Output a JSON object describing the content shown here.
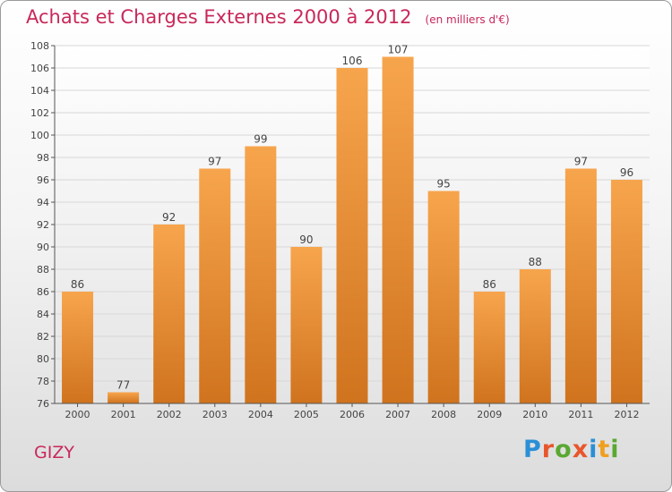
{
  "title": "Achats et Charges Externes 2000 à 2012",
  "unit": "(en milliers d'€)",
  "city": "GIZY",
  "logo": {
    "letters": [
      "P",
      "r",
      "o",
      "x",
      "i",
      "t",
      "i"
    ],
    "colors": [
      "#2a8fd6",
      "#e8562c",
      "#5aa832",
      "#e8562c",
      "#2a8fd6",
      "#f0a020",
      "#5aa832"
    ]
  },
  "colors": {
    "title": "#c8285a",
    "bar_light": "#f7a54d",
    "bar_dark": "#d0731e"
  },
  "chart_data": {
    "type": "bar",
    "title": "Achats et Charges Externes 2000 à 2012",
    "categories": [
      "2000",
      "2001",
      "2002",
      "2003",
      "2004",
      "2005",
      "2006",
      "2007",
      "2008",
      "2009",
      "2010",
      "2011",
      "2012"
    ],
    "values": [
      86,
      77,
      92,
      97,
      99,
      90,
      106,
      107,
      95,
      86,
      88,
      97,
      96
    ],
    "ylim": [
      76,
      108
    ],
    "yticks": [
      76,
      78,
      80,
      82,
      84,
      86,
      88,
      90,
      92,
      94,
      96,
      98,
      100,
      102,
      104,
      106,
      108
    ],
    "grid": true,
    "xlabel": "",
    "ylabel": ""
  }
}
